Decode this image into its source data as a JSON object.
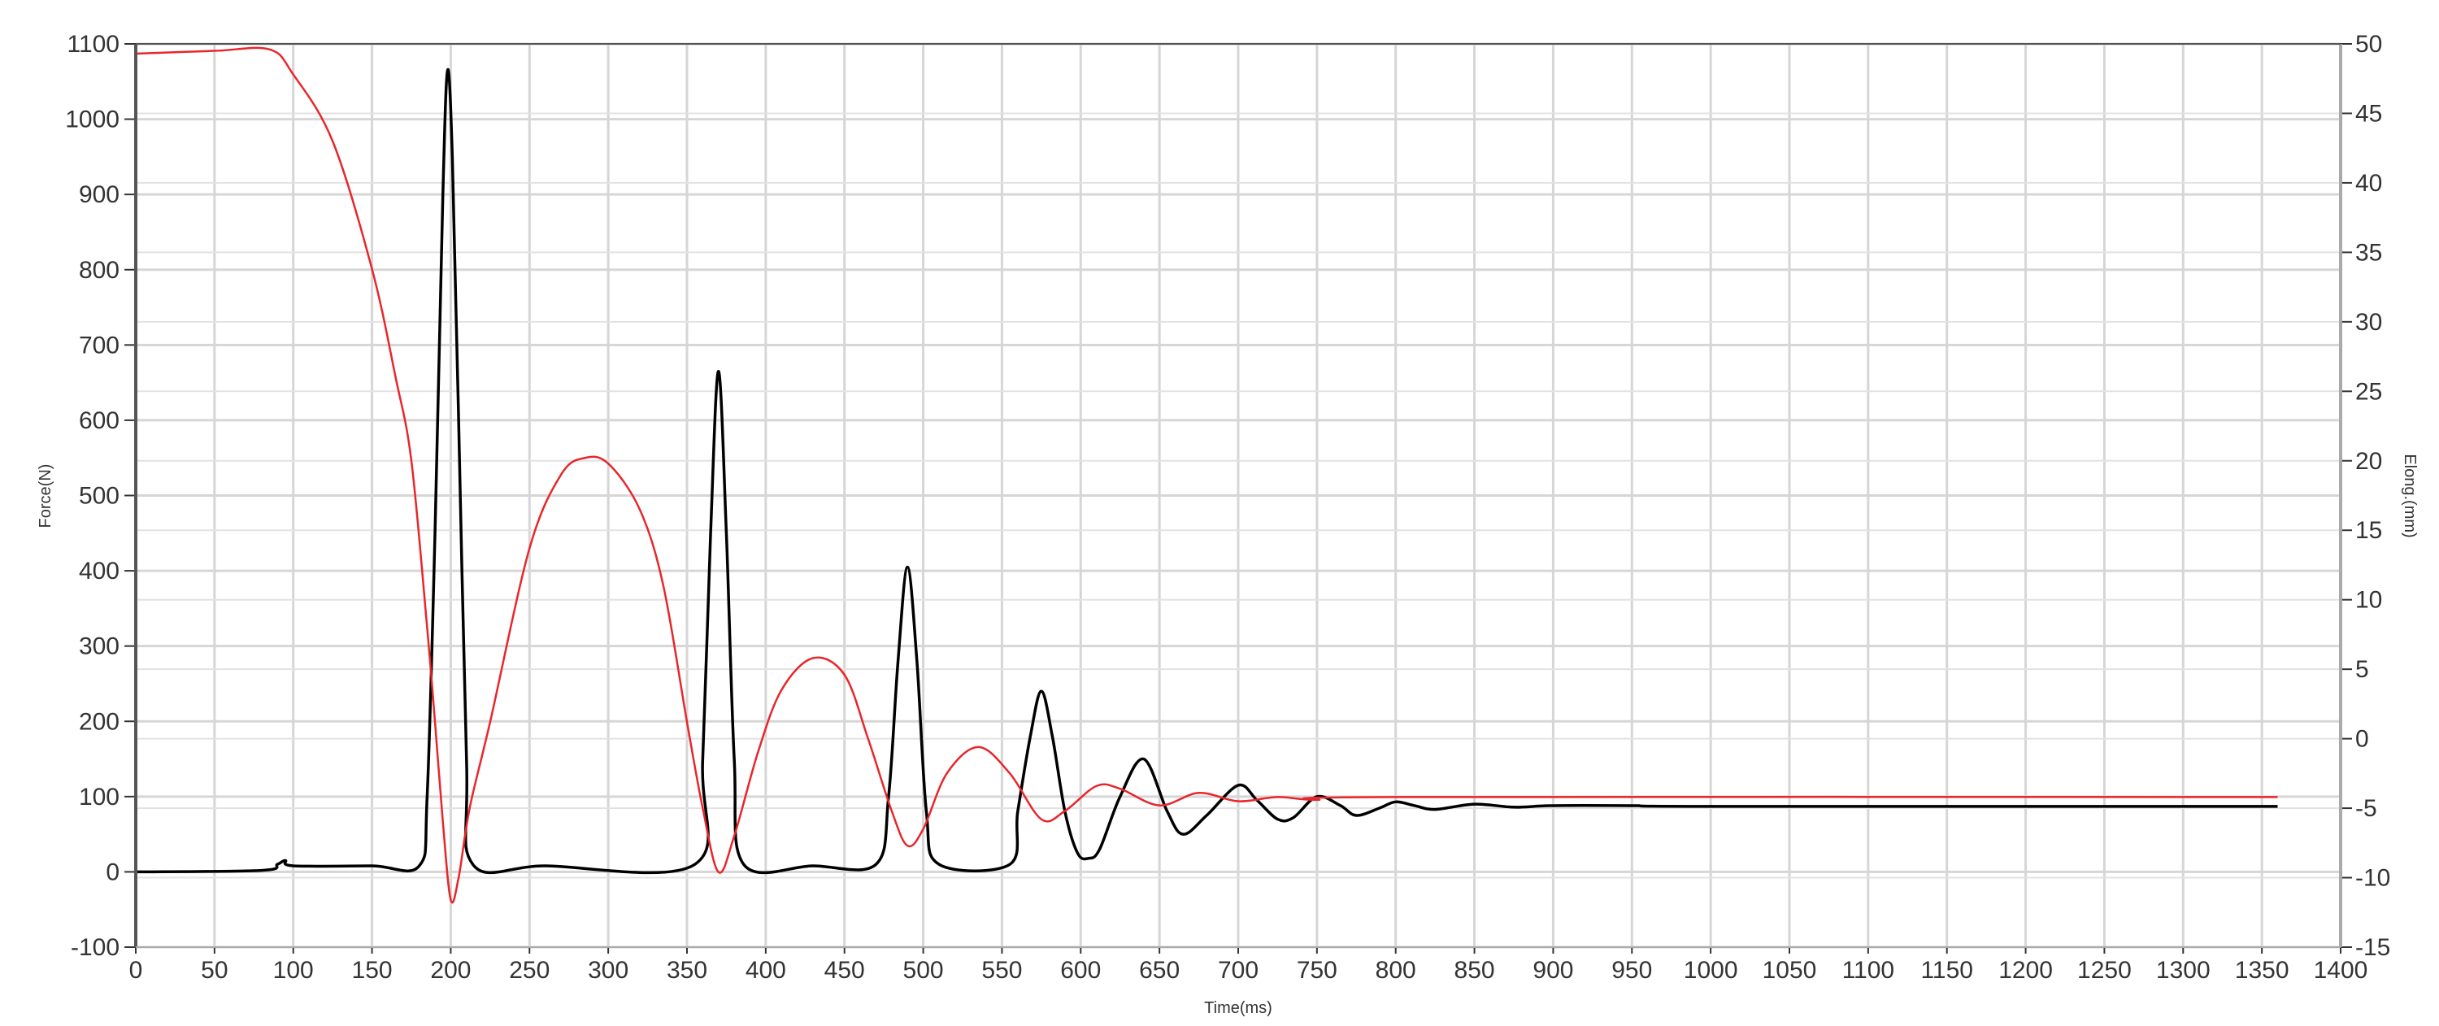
{
  "chart_data": {
    "type": "line",
    "title": "",
    "xlabel": "Time(ms)",
    "ylabel": "Force(N)",
    "y2label": "Elong.(mm)",
    "xlim": [
      0,
      1400
    ],
    "ylim": [
      -100,
      1100
    ],
    "y2lim": [
      -15,
      50
    ],
    "xticks": [
      0,
      50,
      100,
      150,
      200,
      250,
      300,
      350,
      400,
      450,
      500,
      550,
      600,
      650,
      700,
      750,
      800,
      850,
      900,
      950,
      1000,
      1050,
      1100,
      1150,
      1200,
      1250,
      1300,
      1350,
      1400
    ],
    "yticks": [
      -100,
      0,
      100,
      200,
      300,
      400,
      500,
      600,
      700,
      800,
      900,
      1000,
      1100
    ],
    "y2ticks": [
      -15,
      -10,
      -5,
      0,
      5,
      10,
      15,
      20,
      25,
      30,
      35,
      40,
      45,
      50
    ],
    "grid": true,
    "legend": "none",
    "series": [
      {
        "axis": "left",
        "color": "#000000",
        "x": [
          0,
          80,
          90,
          95,
          100,
          150,
          180,
          185,
          190,
          195,
          198,
          201,
          205,
          210,
          214,
          260,
          355,
          360,
          365,
          370,
          375,
          380,
          386,
          430,
          470,
          478,
          484,
          490,
          496,
          502,
          510,
          555,
          560,
          568,
          575,
          582,
          590,
          598,
          605,
          612,
          625,
          640,
          655,
          665,
          680,
          700,
          712,
          725,
          735,
          750,
          765,
          775,
          790,
          800,
          812,
          825,
          850,
          875,
          900,
          950,
          1000,
          1360
        ],
        "y": [
          0,
          2,
          10,
          15,
          8,
          8,
          8,
          100,
          450,
          900,
          1065,
          950,
          600,
          150,
          10,
          8,
          10,
          150,
          450,
          665,
          450,
          150,
          10,
          8,
          10,
          100,
          280,
          405,
          280,
          80,
          10,
          10,
          80,
          180,
          240,
          180,
          80,
          25,
          18,
          30,
          100,
          150,
          80,
          50,
          75,
          115,
          95,
          70,
          72,
          100,
          88,
          75,
          85,
          93,
          88,
          83,
          90,
          86,
          88,
          88,
          87,
          87
        ]
      },
      {
        "axis": "right",
        "color": "#e8262b",
        "x": [
          0,
          50,
          85,
          100,
          125,
          150,
          165,
          175,
          185,
          190,
          195,
          200,
          205,
          212,
          225,
          250,
          270,
          285,
          300,
          320,
          335,
          350,
          360,
          370,
          380,
          395,
          410,
          430,
          450,
          465,
          480,
          490,
          500,
          515,
          535,
          555,
          575,
          590,
          610,
          625,
          650,
          675,
          700,
          725,
          750,
          800,
          1360
        ],
        "y": [
          49.3,
          49.5,
          49.6,
          47.8,
          43,
          33.8,
          26,
          20,
          8,
          1.2,
          -6,
          -11.6,
          -10,
          -5,
          1.2,
          13.7,
          19,
          20.2,
          19.8,
          16.5,
          11,
          1.2,
          -5,
          -9.6,
          -7,
          -1,
          3.5,
          5.8,
          4.6,
          0,
          -5.2,
          -7.7,
          -6.5,
          -2.5,
          -0.6,
          -2.5,
          -5.8,
          -5.2,
          -3.4,
          -3.6,
          -4.8,
          -3.9,
          -4.5,
          -4.2,
          -4.4,
          -4.2,
          -4.2
        ]
      }
    ]
  }
}
